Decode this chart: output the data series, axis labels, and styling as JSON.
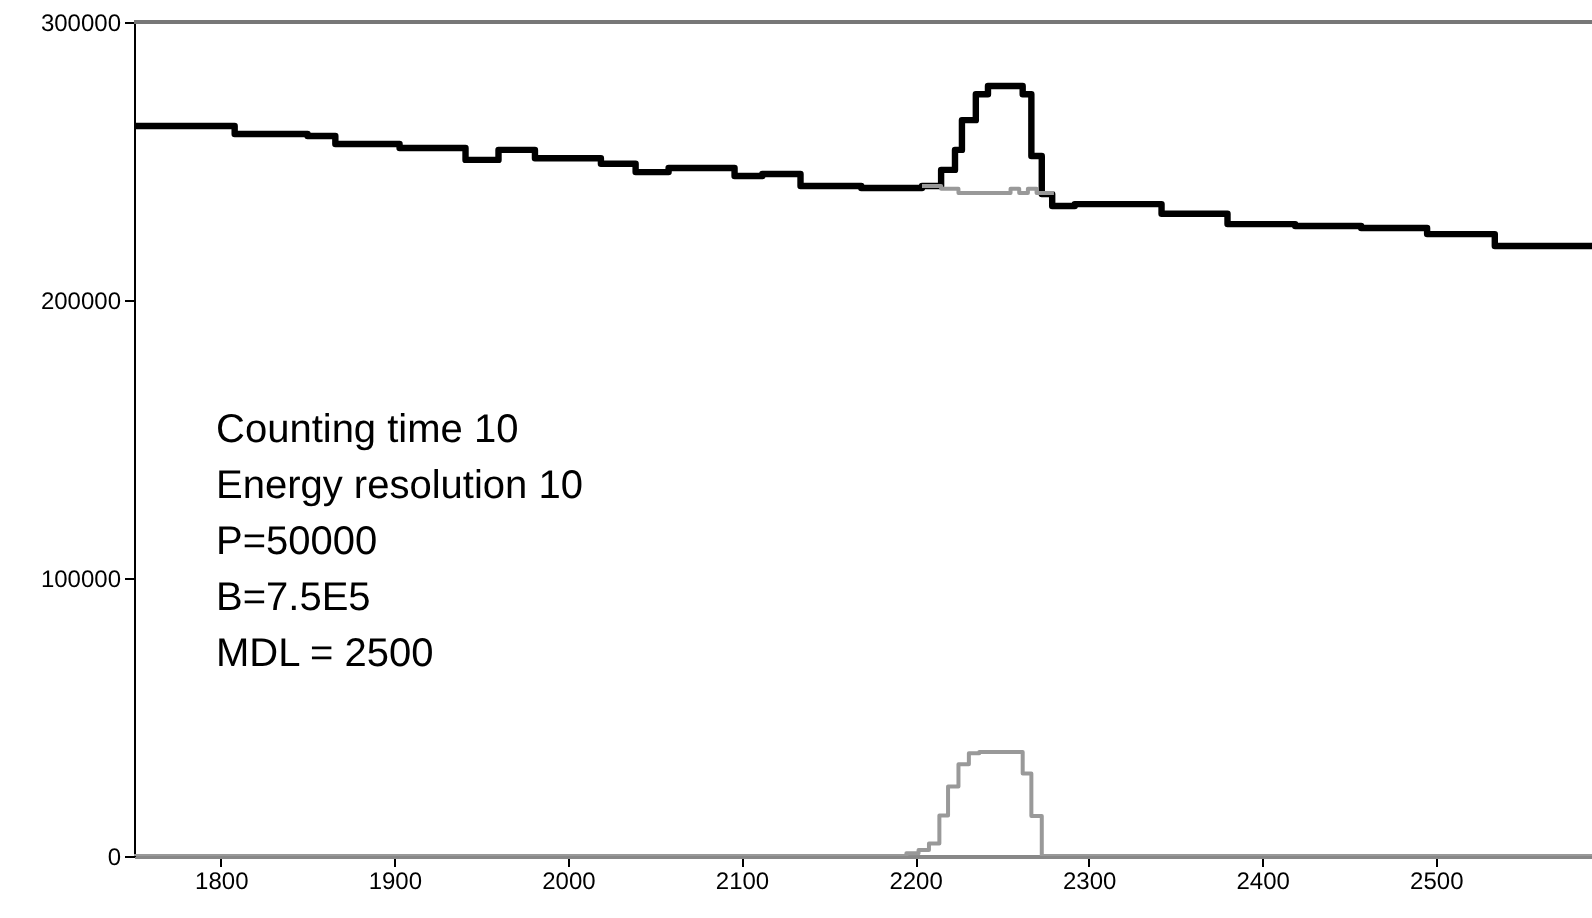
{
  "chart_data": {
    "type": "step",
    "annotations": [
      "Counting time 10",
      "Energy resolution 10",
      "P=50000",
      "B=7.5E5",
      "MDL = 2500"
    ],
    "series": [
      {
        "color": "#000000",
        "x": [
          1750,
          1770,
          1808,
          1850,
          1866,
          1903,
          1941,
          1960,
          1981,
          2019,
          2039,
          2058,
          2096,
          2112,
          2134,
          2169,
          2204,
          2215,
          2223,
          2227,
          2235,
          2242,
          2262,
          2267,
          2273,
          2279,
          2292,
          2342,
          2380,
          2419,
          2457,
          2495,
          2534,
          2590
        ],
        "values": [
          262600,
          262600,
          259700,
          259000,
          256100,
          254700,
          250400,
          254000,
          251000,
          249000,
          246000,
          247500,
          244600,
          245300,
          241000,
          240300,
          241000,
          246800,
          254000,
          264700,
          274000,
          277000,
          274000,
          251800,
          238100,
          233800,
          234500,
          231000,
          227300,
          226600,
          225900,
          223700,
          219400,
          219400
        ]
      },
      {
        "color": "#999999",
        "x": [
          2204,
          2215,
          2225,
          2255,
          2260,
          2265,
          2270,
          2280
        ],
        "values": [
          241000,
          240000,
          238500,
          240000,
          238500,
          240000,
          238500,
          238500
        ]
      },
      {
        "color": "#999999",
        "x": [
          1750,
          2195,
          2202,
          2208,
          2214,
          2219,
          2225,
          2231,
          2237,
          2242,
          2262,
          2267,
          2273,
          2279,
          2590
        ],
        "values": [
          0,
          1000,
          2200,
          4500,
          14600,
          25000,
          33000,
          37000,
          37400,
          37400,
          29700,
          14400,
          0,
          0,
          0
        ]
      }
    ],
    "xlim": [
      1750,
      2590
    ],
    "xticks": [
      1800,
      1900,
      2000,
      2100,
      2200,
      2300,
      2400,
      2500
    ],
    "ylim": [
      0,
      300000
    ],
    "yticks": [
      0,
      100000,
      200000,
      300000
    ],
    "grid": false
  }
}
